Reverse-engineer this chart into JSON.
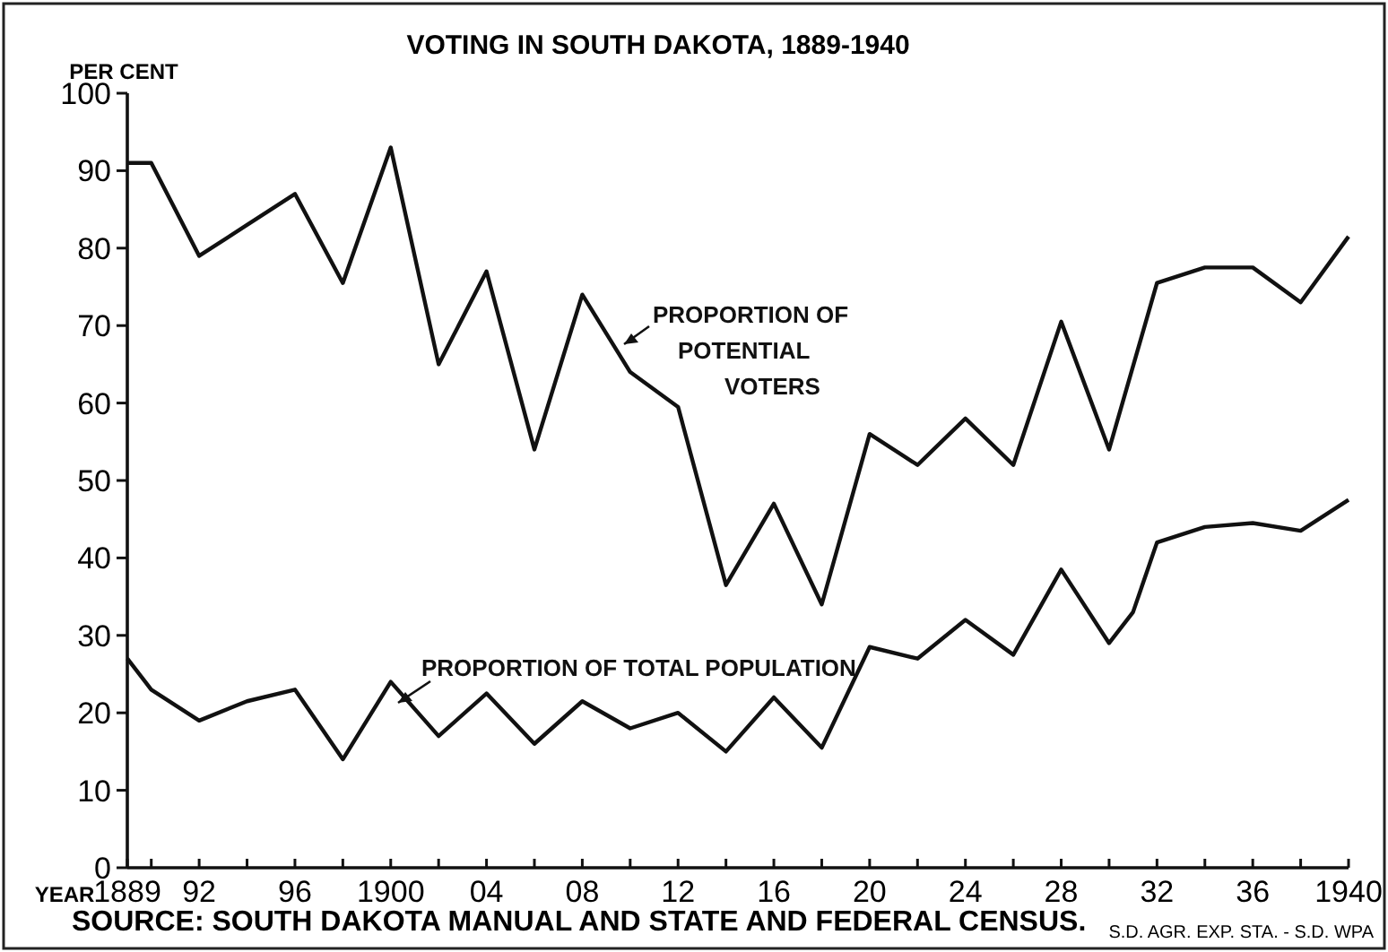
{
  "chart_data": {
    "type": "line",
    "title": "VOTING IN SOUTH DAKOTA, 1889-1940",
    "ylabel": "PER CENT",
    "xlabel": "YEAR",
    "x": [
      1889,
      1890,
      1892,
      1894,
      1896,
      1898,
      1900,
      1902,
      1904,
      1906,
      1908,
      1910,
      1912,
      1914,
      1916,
      1918,
      1920,
      1922,
      1924,
      1926,
      1928,
      1930,
      1932,
      1934,
      1936,
      1938,
      1940
    ],
    "series": [
      {
        "name": "PROPORTION OF POTENTIAL VOTERS",
        "color": "#111111",
        "values": [
          91,
          91,
          79,
          83,
          87,
          75.5,
          93,
          65,
          77,
          54,
          74,
          64,
          59.5,
          36.5,
          47,
          34,
          56,
          52,
          58,
          52,
          70.5,
          54,
          75.5,
          77.5,
          77.5,
          73,
          81.5
        ]
      },
      {
        "name": "PROPORTION OF TOTAL POPULATION",
        "color": "#111111",
        "x": [
          1889,
          1890,
          1892,
          1894,
          1896,
          1898,
          1900,
          1902,
          1904,
          1906,
          1908,
          1910,
          1912,
          1914,
          1916,
          1918,
          1920,
          1922,
          1924,
          1926,
          1928,
          1930,
          1931,
          1932,
          1934,
          1936,
          1938,
          1940
        ],
        "values": [
          27,
          23,
          19,
          21.5,
          23,
          14,
          24,
          17,
          22.5,
          16,
          21.5,
          18,
          20,
          15,
          22,
          15.5,
          28.5,
          27,
          32,
          27.5,
          38.5,
          29,
          33,
          42,
          44,
          44.5,
          43.5,
          47.5
        ]
      }
    ],
    "xlim": [
      1889,
      1940
    ],
    "xticks": [
      {
        "value": 1889,
        "label": "1889"
      },
      {
        "value": 1890,
        "label": null
      },
      {
        "value": 1892,
        "label": "92"
      },
      {
        "value": 1894,
        "label": null
      },
      {
        "value": 1896,
        "label": "96"
      },
      {
        "value": 1898,
        "label": null
      },
      {
        "value": 1900,
        "label": "1900"
      },
      {
        "value": 1902,
        "label": null
      },
      {
        "value": 1904,
        "label": "04"
      },
      {
        "value": 1906,
        "label": null
      },
      {
        "value": 1908,
        "label": "08"
      },
      {
        "value": 1910,
        "label": null
      },
      {
        "value": 1912,
        "label": "12"
      },
      {
        "value": 1914,
        "label": null
      },
      {
        "value": 1916,
        "label": "16"
      },
      {
        "value": 1918,
        "label": null
      },
      {
        "value": 1920,
        "label": "20"
      },
      {
        "value": 1922,
        "label": null
      },
      {
        "value": 1924,
        "label": "24"
      },
      {
        "value": 1926,
        "label": null
      },
      {
        "value": 1928,
        "label": "28"
      },
      {
        "value": 1930,
        "label": null
      },
      {
        "value": 1932,
        "label": "32"
      },
      {
        "value": 1934,
        "label": null
      },
      {
        "value": 1936,
        "label": "36"
      },
      {
        "value": 1938,
        "label": null
      },
      {
        "value": 1940,
        "label": "1940"
      }
    ],
    "ylim": [
      0,
      100
    ],
    "yticks": [
      0,
      10,
      20,
      30,
      40,
      50,
      60,
      70,
      80,
      90,
      100
    ],
    "grid": false,
    "marker": "none",
    "line_style": "solid",
    "annotations": [
      "SOURCE: SOUTH DAKOTA MANUAL AND STATE AND FEDERAL CENSUS.",
      "S.D. AGR. EXP. STA. - S.D. WPA"
    ]
  }
}
